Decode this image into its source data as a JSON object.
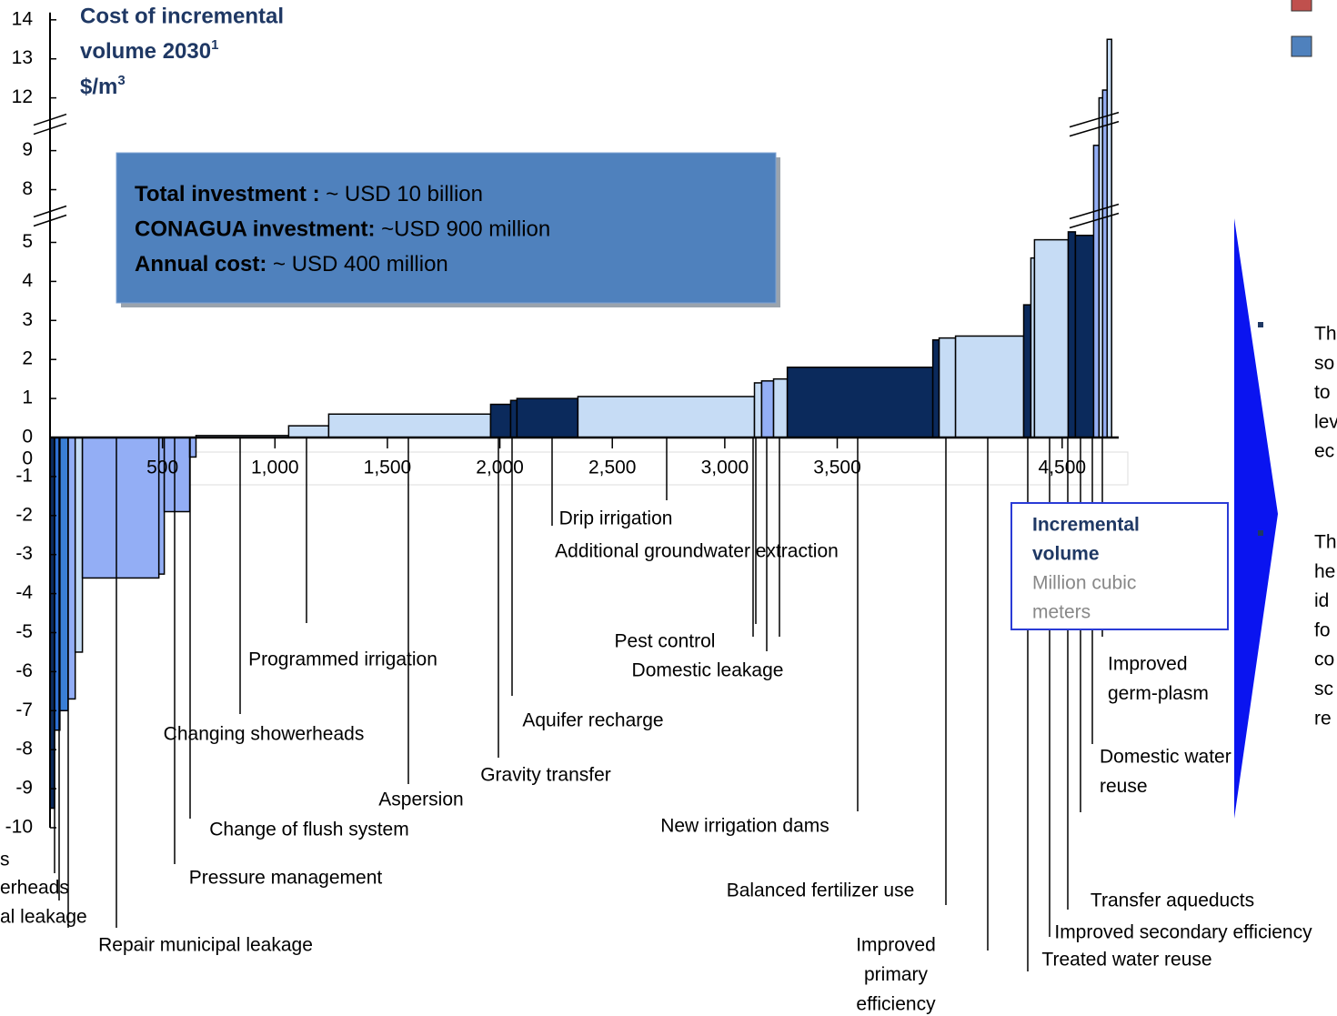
{
  "chart_data": {
    "type": "cost_curve",
    "title_lines": [
      "Cost of incremental",
      "volume 2030",
      "$/m"
    ],
    "title_superscripts": [
      "1",
      "3"
    ],
    "yticks": [
      14,
      13,
      12,
      9,
      8,
      5,
      4,
      3,
      2,
      1,
      0,
      -1,
      -2,
      -3,
      -4,
      -5,
      -6,
      -7,
      -8,
      -9,
      -10
    ],
    "y_segments": [
      [
        -10,
        5
      ],
      [
        8,
        9
      ],
      [
        12,
        14
      ]
    ],
    "xlim": [
      0,
      4800
    ],
    "xticks": [
      0,
      {
        "value": 500,
        "label": "500"
      },
      {
        "value": 1000,
        "label": "1,000"
      },
      {
        "value": 1500,
        "label": "1,500"
      },
      {
        "value": 2000,
        "label": "2,000"
      },
      {
        "value": 2500,
        "label": "2,500"
      },
      {
        "value": 3000,
        "label": "3,000"
      },
      {
        "value": 3500,
        "label": "3,500"
      },
      {
        "value": 4500,
        "label": "4,500"
      }
    ],
    "x_label": [
      "Incremental",
      "volume"
    ],
    "x_unit": [
      "Million cubic",
      "meters"
    ],
    "bars": [
      {
        "width": 20,
        "value": -9.5,
        "color": "#0b2a5c"
      },
      {
        "width": 24,
        "value": -7.5,
        "color": "#2f6fd1"
      },
      {
        "width": 36,
        "value": -7,
        "color": "#3a7fd5"
      },
      {
        "width": 32,
        "value": -6.7,
        "color": "#93aef5"
      },
      {
        "width": 32,
        "value": -5.5,
        "color": "#c6dcf5"
      },
      {
        "width": 340,
        "value": -3.6,
        "color": "#93aef5"
      },
      {
        "width": 24,
        "value": -3.5,
        "color": "#93aef5"
      },
      {
        "width": 113,
        "value": -1.9,
        "color": "#93aef5"
      },
      {
        "width": 28,
        "value": -0.5,
        "color": "#93aef5"
      },
      {
        "width": 412,
        "value": 0.05,
        "color": "#c6dcf5"
      },
      {
        "width": 178,
        "value": 0.3,
        "color": "#c6dcf5"
      },
      {
        "width": 720,
        "value": 0.6,
        "color": "#c6dcf5"
      },
      {
        "width": 89,
        "value": 0.85,
        "color": "#0b2a5c"
      },
      {
        "width": 28,
        "value": 0.95,
        "color": "#0b2a5c"
      },
      {
        "width": 271,
        "value": 1.0,
        "color": "#0b2a5c"
      },
      {
        "width": 785,
        "value": 1.05,
        "color": "#c6dcf5"
      },
      {
        "width": 32,
        "value": 1.4,
        "color": "#c6dcf5"
      },
      {
        "width": 53,
        "value": 1.45,
        "color": "#93aef5"
      },
      {
        "width": 61,
        "value": 1.5,
        "color": "#c6dcf5"
      },
      {
        "width": 647,
        "value": 1.8,
        "color": "#0b2a5c"
      },
      {
        "width": 28,
        "value": 2.5,
        "color": "#0b2a5c"
      },
      {
        "width": 73,
        "value": 2.55,
        "color": "#c6dcf5"
      },
      {
        "width": 303,
        "value": 2.6,
        "color": "#c6dcf5"
      },
      {
        "width": 32,
        "value": 3.4,
        "color": "#0b2a5c"
      },
      {
        "width": 16,
        "value": 4.6,
        "color": "#c6dcf5"
      },
      {
        "width": 150,
        "value": 5.15,
        "color": "#c6dcf5"
      },
      {
        "width": 32,
        "value": 5.6,
        "color": "#0b2a5c"
      },
      {
        "width": 81,
        "value": 5.4,
        "color": "#0b2a5c"
      },
      {
        "width": 24,
        "value": 9.3,
        "color": "#93aef5"
      },
      {
        "width": 16,
        "value": 12,
        "color": "#c6dcf5"
      },
      {
        "width": 20,
        "value": 12.2,
        "color": "#93aef5"
      },
      {
        "width": 20,
        "value": 13.5,
        "color": "#c6dcf5"
      }
    ]
  },
  "info_box": [
    {
      "bold": "Total investment :",
      "text": " ~ USD 10 billion"
    },
    {
      "bold": "CONAGUA investment:",
      "text": "  ~USD 900 million"
    },
    {
      "bold": "Annual cost:",
      "text": " ~ USD 400 million"
    }
  ],
  "measure_labels": [
    [
      "Drip irrigation"
    ],
    [
      "Additional groundwater extraction"
    ],
    [
      "Pest control"
    ],
    [
      "Domestic leakage"
    ],
    [
      "Programmed irrigation"
    ],
    [
      "Aquifer recharge"
    ],
    [
      "Changing showerheads"
    ],
    [
      "Gravity transfer"
    ],
    [
      "Aspersion"
    ],
    [
      "New irrigation dams"
    ],
    [
      "Change of flush system"
    ],
    [
      "Pressure management"
    ],
    [
      "Repair municipal leakage"
    ],
    [
      "Balanced fertilizer use"
    ],
    [
      "Improved",
      "primary",
      "efficiency"
    ],
    [
      "Transfer aqueducts"
    ],
    [
      "Improved secondary efficiency"
    ],
    [
      "Treated water reuse"
    ],
    [
      "Domestic water",
      "reuse"
    ],
    [
      "Improved",
      "germ-plasm"
    ],
    [
      "s"
    ],
    [
      "erheads"
    ],
    [
      "al leakage"
    ]
  ],
  "side_notes": [
    [
      "Th",
      "so",
      "to",
      "lev",
      "ec"
    ],
    [
      "Th",
      "he",
      "id",
      "fo",
      "co",
      "sc",
      "re"
    ]
  ]
}
